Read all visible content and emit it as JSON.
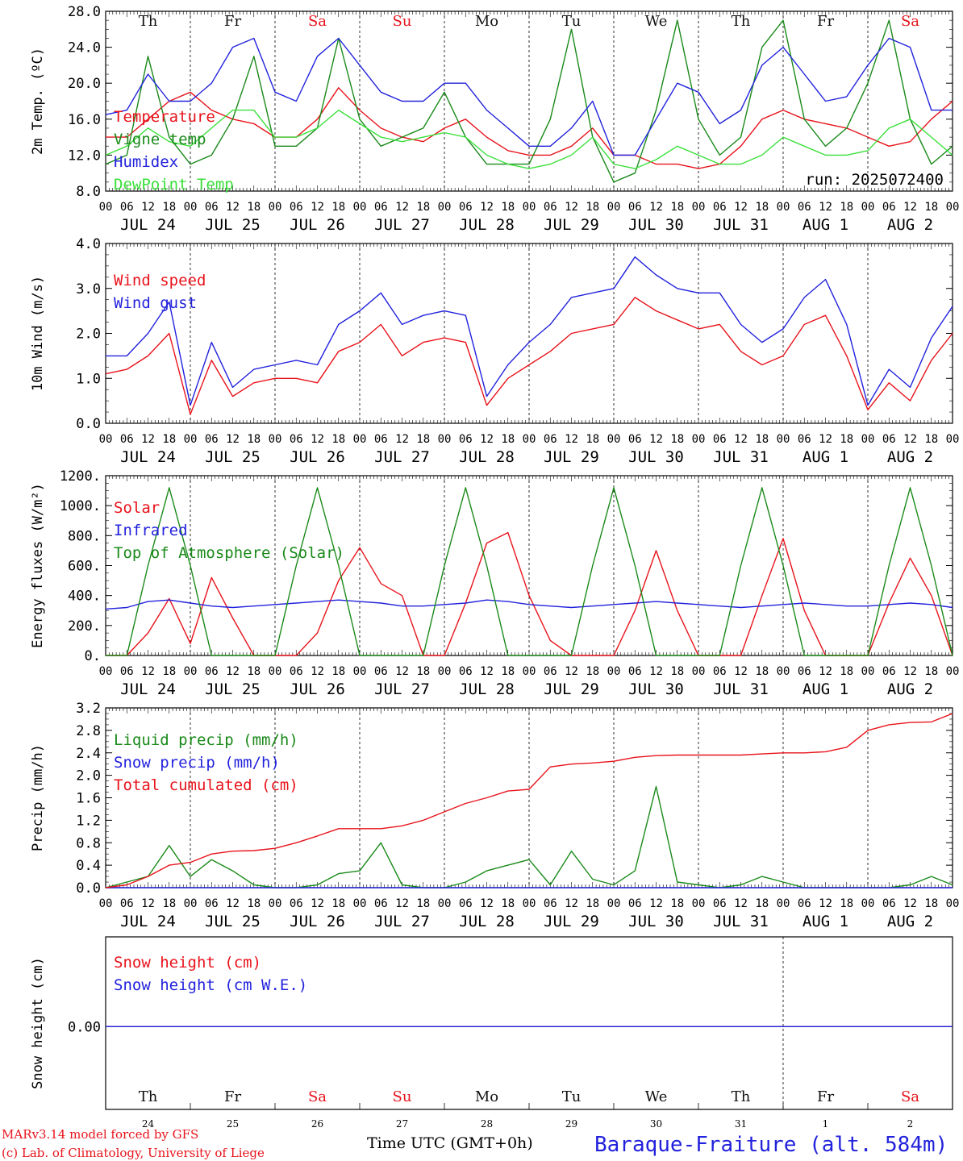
{
  "chart_data": [
    {
      "type": "line",
      "ylabel": "2m Temp. (ºC)",
      "ylim": [
        8,
        28
      ],
      "yticks": [
        "8.0",
        "12.0",
        "16.0",
        "20.0",
        "24.0",
        "28.0"
      ],
      "legend": [
        "Temperature",
        "Vigne temp",
        "Humidex",
        "DewPoint Temp"
      ],
      "annotation": "run: 2025072400",
      "x_hours": [
        0,
        6,
        12,
        18,
        24,
        30,
        36,
        42,
        48,
        54,
        60,
        66,
        72,
        78,
        84,
        90,
        96,
        102,
        108,
        114,
        120,
        126,
        132,
        138,
        144,
        150,
        156,
        162,
        168,
        174,
        180,
        186,
        192,
        198,
        204,
        210,
        216,
        222,
        228,
        234,
        240
      ],
      "series": [
        {
          "name": "Temperature",
          "color": "#e8131b",
          "values": [
            14,
            14,
            16,
            18,
            19,
            17,
            16,
            15.5,
            14,
            14,
            16,
            19.5,
            17,
            15,
            14,
            13.5,
            15,
            16,
            14,
            12.5,
            12,
            12,
            13,
            15,
            12,
            12,
            11,
            11,
            10.5,
            11,
            13,
            16,
            17,
            16,
            15.5,
            15,
            14,
            13,
            13.5,
            16,
            18
          ]
        },
        {
          "name": "Vigne temp",
          "color": "#1a8a1a",
          "values": [
            11,
            12,
            23,
            14,
            11,
            12,
            16,
            23,
            13,
            13,
            15,
            25,
            16,
            13,
            14,
            15,
            19,
            14,
            11,
            11,
            11,
            16,
            26,
            14,
            9,
            10,
            17,
            27,
            16,
            12,
            14,
            24,
            27,
            16,
            13,
            15,
            20,
            27,
            16,
            11,
            13
          ]
        },
        {
          "name": "Humidex",
          "color": "#2222dd",
          "values": [
            16.5,
            17,
            21,
            18,
            18,
            20,
            24,
            25,
            19,
            18,
            23,
            25,
            22,
            19,
            18,
            18,
            20,
            20,
            17,
            15,
            13,
            13,
            15,
            18,
            12,
            12,
            16,
            20,
            19,
            15.5,
            17,
            22,
            24,
            21,
            18,
            18.5,
            22,
            25,
            24,
            17,
            17
          ]
        },
        {
          "name": "DewPoint Temp",
          "color": "#3ae03a",
          "values": [
            12,
            13,
            15,
            13.5,
            13,
            15,
            17,
            17,
            14,
            14,
            15,
            17,
            15.5,
            14,
            13.5,
            14,
            14.5,
            14,
            12,
            11,
            10.5,
            11,
            12,
            14,
            11,
            10.5,
            11.5,
            13,
            12,
            11,
            11,
            12,
            14,
            13,
            12,
            12,
            12.5,
            15,
            16,
            14,
            12
          ]
        }
      ]
    },
    {
      "type": "line",
      "ylabel": "10m Wind (m/s)",
      "ylim": [
        0,
        4
      ],
      "yticks": [
        "0.0",
        "1.0",
        "2.0",
        "3.0",
        "4.0"
      ],
      "legend": [
        "Wind speed",
        "Wind gust"
      ],
      "series": [
        {
          "name": "Wind speed",
          "color": "#e8131b",
          "values": [
            1.1,
            1.2,
            1.5,
            2,
            0.2,
            1.4,
            0.6,
            0.9,
            1,
            1,
            0.9,
            1.6,
            1.8,
            2.2,
            1.5,
            1.8,
            1.9,
            1.8,
            0.4,
            1,
            1.3,
            1.6,
            2,
            2.1,
            2.2,
            2.8,
            2.5,
            2.3,
            2.1,
            2.2,
            1.6,
            1.3,
            1.5,
            2.2,
            2.4,
            1.5,
            0.3,
            0.9,
            0.5,
            1.4,
            2
          ]
        },
        {
          "name": "Wind gust",
          "color": "#2222dd",
          "values": [
            1.5,
            1.5,
            2,
            2.7,
            0.4,
            1.8,
            0.8,
            1.2,
            1.3,
            1.4,
            1.3,
            2.2,
            2.5,
            2.9,
            2.2,
            2.4,
            2.5,
            2.4,
            0.6,
            1.3,
            1.8,
            2.2,
            2.8,
            2.9,
            3,
            3.7,
            3.3,
            3,
            2.9,
            2.9,
            2.2,
            1.8,
            2.1,
            2.8,
            3.2,
            2.2,
            0.4,
            1.2,
            0.8,
            1.9,
            2.6
          ]
        }
      ]
    },
    {
      "type": "line",
      "ylabel": "Energy fluxes (W/m²)",
      "ylim": [
        0,
        1200
      ],
      "yticks": [
        "0.",
        "200.",
        "400.",
        "600.",
        "800.",
        "1000.",
        "1200."
      ],
      "legend": [
        "Solar",
        "Infrared",
        "Top of Atmosphere (Solar)"
      ],
      "series": [
        {
          "name": "Solar",
          "color": "#e8131b",
          "values": [
            0,
            0,
            150,
            380,
            80,
            520,
            250,
            0,
            0,
            0,
            150,
            500,
            720,
            480,
            400,
            0,
            0,
            350,
            750,
            820,
            400,
            100,
            0,
            0,
            0,
            300,
            700,
            300,
            0,
            0,
            0,
            400,
            780,
            300,
            0,
            0,
            0,
            350,
            650,
            400,
            0
          ]
        },
        {
          "name": "Infrared",
          "color": "#2222dd",
          "values": [
            310,
            320,
            360,
            370,
            350,
            330,
            320,
            330,
            340,
            350,
            360,
            370,
            360,
            350,
            330,
            330,
            340,
            350,
            370,
            360,
            340,
            330,
            320,
            330,
            340,
            350,
            360,
            350,
            340,
            330,
            320,
            330,
            340,
            350,
            340,
            330,
            330,
            340,
            350,
            340,
            320
          ]
        },
        {
          "name": "Top of Atmosphere (Solar)",
          "color": "#1a8a1a",
          "values": [
            0,
            0,
            600,
            1120,
            600,
            0,
            0,
            0,
            0,
            600,
            1120,
            600,
            0,
            0,
            0,
            0,
            600,
            1120,
            600,
            0,
            0,
            0,
            0,
            600,
            1120,
            600,
            0,
            0,
            0,
            0,
            600,
            1120,
            600,
            0,
            0,
            0,
            0,
            600,
            1120,
            600,
            0
          ]
        }
      ]
    },
    {
      "type": "line",
      "ylabel": "Precip (mm/h)",
      "ylim": [
        0,
        3.2
      ],
      "yticks": [
        "0.0",
        "0.4",
        "0.8",
        "1.2",
        "1.6",
        "2.0",
        "2.4",
        "2.8",
        "3.2"
      ],
      "legend": [
        "Liquid precip (mm/h)",
        "Snow precip (mm/h)",
        "Total cumulated (cm)"
      ],
      "series": [
        {
          "name": "Liquid precip (mm/h)",
          "color": "#1a8a1a",
          "values": [
            0,
            0.1,
            0.2,
            0.75,
            0.2,
            0.5,
            0.3,
            0.05,
            0,
            0,
            0.05,
            0.25,
            0.3,
            0.8,
            0.05,
            0,
            0,
            0.1,
            0.3,
            0.4,
            0.5,
            0.05,
            0.65,
            0.15,
            0.05,
            0.3,
            1.8,
            0.1,
            0.05,
            0,
            0.05,
            0.2,
            0.1,
            0,
            0,
            0,
            0,
            0,
            0.05,
            0.2,
            0.05
          ]
        },
        {
          "name": "Snow precip (mm/h)",
          "color": "#2222dd",
          "values": [
            0,
            0,
            0,
            0,
            0,
            0,
            0,
            0,
            0,
            0,
            0,
            0,
            0,
            0,
            0,
            0,
            0,
            0,
            0,
            0,
            0,
            0,
            0,
            0,
            0,
            0,
            0,
            0,
            0,
            0,
            0,
            0,
            0,
            0,
            0,
            0,
            0,
            0,
            0,
            0,
            0
          ]
        },
        {
          "name": "Total cumulated (cm)",
          "color": "#e8131b",
          "values": [
            0,
            0.05,
            0.2,
            0.4,
            0.45,
            0.6,
            0.65,
            0.66,
            0.7,
            0.8,
            0.92,
            1.05,
            1.05,
            1.05,
            1.1,
            1.2,
            1.35,
            1.5,
            1.6,
            1.72,
            1.75,
            2.15,
            2.2,
            2.22,
            2.25,
            2.32,
            2.35,
            2.36,
            2.36,
            2.36,
            2.36,
            2.38,
            2.4,
            2.4,
            2.42,
            2.5,
            2.8,
            2.9,
            2.94,
            2.95,
            3.1
          ]
        }
      ]
    },
    {
      "type": "line",
      "ylabel": "Snow height (cm)",
      "yticks": [
        "0.00"
      ],
      "legend": [
        "Snow height (cm)",
        "Snow height (cm W.E.)"
      ],
      "series": [
        {
          "name": "Snow height (cm)",
          "color": "#e8131b",
          "values": [
            0,
            0
          ]
        },
        {
          "name": "Snow height (cm W.E.)",
          "color": "#2222dd",
          "values": [
            0,
            0
          ]
        }
      ]
    }
  ],
  "x_axis": {
    "hour_ticks": [
      "00",
      "06",
      "12",
      "18"
    ],
    "final_tick": "00",
    "date_labels": [
      "JUL 24",
      "JUL 25",
      "JUL 26",
      "JUL 27",
      "JUL 28",
      "JUL 29",
      "JUL 30",
      "JUL 31",
      "AUG  1",
      "AUG  2"
    ],
    "weekdays": [
      "Th",
      "Fr",
      "Sa",
      "Su",
      "Mo",
      "Tu",
      "We",
      "Th",
      "Fr",
      "Sa"
    ],
    "weekend_flags": [
      false,
      false,
      true,
      true,
      false,
      false,
      false,
      false,
      false,
      true
    ],
    "day_numbers": [
      "24",
      "25",
      "26",
      "27",
      "28",
      "29",
      "30",
      "31",
      "1",
      "2"
    ],
    "xlabel": "Time UTC (GMT+0h)"
  },
  "colors": {
    "weekday": "#111111",
    "weekend": "#e8131b",
    "axis": "#000000"
  },
  "footer": {
    "credit_line1": "MARv3.14 model forced by GFS",
    "credit_line2": "(c) Lab. of Climatology, University of Liege",
    "station": "Baraque-Fraiture (alt. 584m)",
    "credit_color": "#e8131b",
    "station_color": "#2222dd"
  }
}
